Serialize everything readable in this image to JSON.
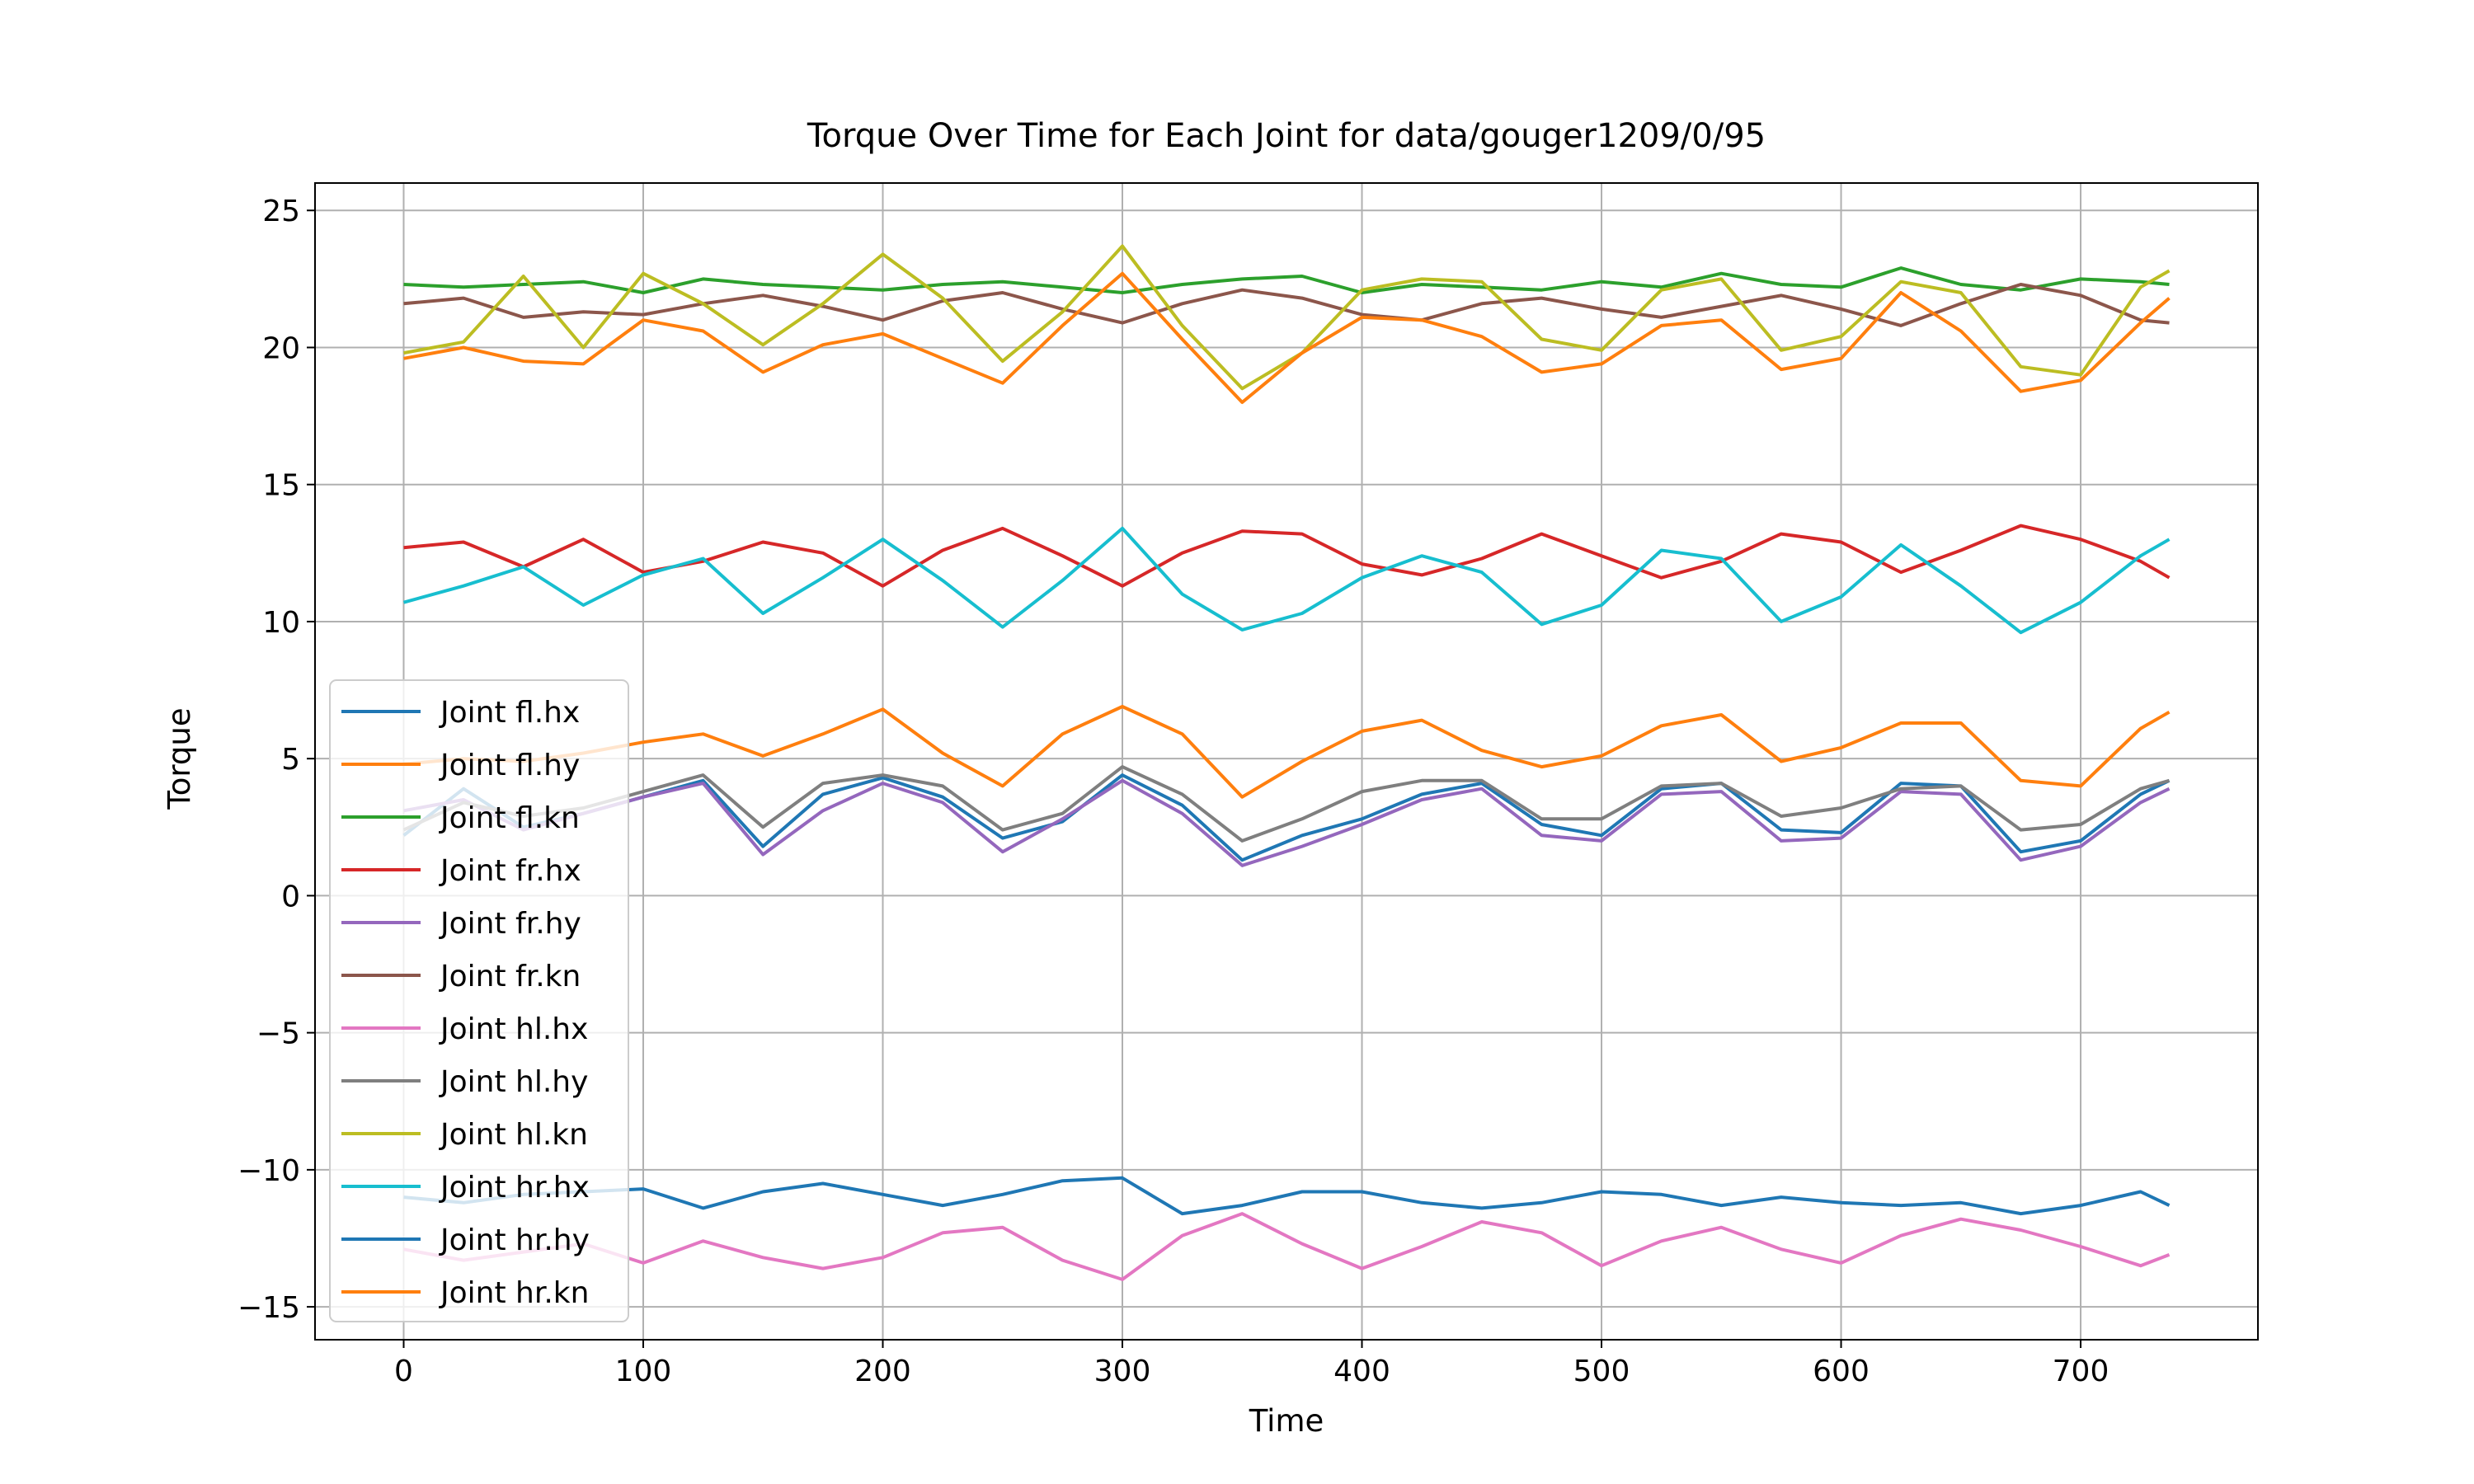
{
  "chart_data": {
    "type": "line",
    "title": "Torque Over Time for Each Joint for data/gouger1209/0/95",
    "xlabel": "Time",
    "ylabel": "Torque",
    "xlim": [
      -37,
      774
    ],
    "ylim": [
      -16.2,
      26.0
    ],
    "xticks": [
      0,
      100,
      200,
      300,
      400,
      500,
      600,
      700
    ],
    "yticks": [
      -15,
      -10,
      -5,
      0,
      5,
      10,
      15,
      20,
      25
    ],
    "grid": true,
    "legend_position": "lower-left",
    "x": [
      0,
      25,
      50,
      75,
      100,
      125,
      150,
      175,
      200,
      225,
      250,
      275,
      300,
      325,
      350,
      375,
      400,
      425,
      450,
      475,
      500,
      525,
      550,
      575,
      600,
      625,
      650,
      675,
      700,
      725,
      737
    ],
    "series": [
      {
        "name": "Joint fl.hx",
        "color": "#1f77b4",
        "values": [
          2.2,
          3.9,
          2.5,
          3.0,
          3.6,
          4.2,
          1.8,
          3.7,
          4.3,
          3.6,
          2.1,
          2.7,
          4.4,
          3.3,
          1.3,
          2.2,
          2.8,
          3.7,
          4.1,
          2.6,
          2.2,
          3.9,
          4.1,
          2.4,
          2.3,
          4.1,
          4.0,
          1.6,
          2.0,
          3.7,
          4.2
        ]
      },
      {
        "name": "Joint fl.hy",
        "color": "#ff7f0e",
        "values": [
          4.8,
          5.0,
          4.9,
          5.2,
          5.6,
          5.9,
          5.1,
          5.9,
          6.8,
          5.2,
          4.0,
          5.9,
          6.9,
          5.9,
          3.6,
          4.9,
          6.0,
          6.4,
          5.3,
          4.7,
          5.1,
          6.2,
          6.6,
          4.9,
          5.4,
          6.3,
          6.3,
          4.2,
          4.0,
          6.1,
          6.7
        ]
      },
      {
        "name": "Joint fl.kn",
        "color": "#2ca02c",
        "values": [
          22.3,
          22.2,
          22.3,
          22.4,
          22.0,
          22.5,
          22.3,
          22.2,
          22.1,
          22.3,
          22.4,
          22.2,
          22.0,
          22.3,
          22.5,
          22.6,
          22.0,
          22.3,
          22.2,
          22.1,
          22.4,
          22.2,
          22.7,
          22.3,
          22.2,
          22.9,
          22.3,
          22.1,
          22.5,
          22.4,
          22.3
        ]
      },
      {
        "name": "Joint fr.hx",
        "color": "#d62728",
        "values": [
          12.7,
          12.9,
          12.0,
          13.0,
          11.8,
          12.2,
          12.9,
          12.5,
          11.3,
          12.6,
          13.4,
          12.4,
          11.3,
          12.5,
          13.3,
          13.2,
          12.1,
          11.7,
          12.3,
          13.2,
          12.4,
          11.6,
          12.2,
          13.2,
          12.9,
          11.8,
          12.6,
          13.5,
          13.0,
          12.2,
          11.6
        ]
      },
      {
        "name": "Joint fr.hy",
        "color": "#9467bd",
        "values": [
          3.1,
          3.5,
          2.4,
          3.0,
          3.6,
          4.1,
          1.5,
          3.1,
          4.1,
          3.4,
          1.6,
          2.8,
          4.2,
          3.0,
          1.1,
          1.8,
          2.6,
          3.5,
          3.9,
          2.2,
          2.0,
          3.7,
          3.8,
          2.0,
          2.1,
          3.8,
          3.7,
          1.3,
          1.8,
          3.4,
          3.9
        ]
      },
      {
        "name": "Joint fr.kn",
        "color": "#8c564b",
        "values": [
          21.6,
          21.8,
          21.1,
          21.3,
          21.2,
          21.6,
          21.9,
          21.5,
          21.0,
          21.7,
          22.0,
          21.4,
          20.9,
          21.6,
          22.1,
          21.8,
          21.2,
          21.0,
          21.6,
          21.8,
          21.4,
          21.1,
          21.5,
          21.9,
          21.4,
          20.8,
          21.6,
          22.3,
          21.9,
          21.0,
          20.9
        ]
      },
      {
        "name": "Joint hl.hx",
        "color": "#e377c2",
        "values": [
          -12.9,
          -13.3,
          -13.0,
          -12.7,
          -13.4,
          -12.6,
          -13.2,
          -13.6,
          -13.2,
          -12.3,
          -12.1,
          -13.3,
          -14.0,
          -12.4,
          -11.6,
          -12.7,
          -13.6,
          -12.8,
          -11.9,
          -12.3,
          -13.5,
          -12.6,
          -12.1,
          -12.9,
          -13.4,
          -12.4,
          -11.8,
          -12.2,
          -12.8,
          -13.5,
          -13.1
        ]
      },
      {
        "name": "Joint hl.hy",
        "color": "#7f7f7f",
        "values": [
          2.4,
          3.4,
          2.9,
          3.2,
          3.8,
          4.4,
          2.5,
          4.1,
          4.4,
          4.0,
          2.4,
          3.0,
          4.7,
          3.7,
          2.0,
          2.8,
          3.8,
          4.2,
          4.2,
          2.8,
          2.8,
          4.0,
          4.1,
          2.9,
          3.2,
          3.9,
          4.0,
          2.4,
          2.6,
          3.9,
          4.2
        ]
      },
      {
        "name": "Joint hl.kn",
        "color": "#bcbd22",
        "values": [
          19.8,
          20.2,
          22.6,
          20.0,
          22.7,
          21.6,
          20.1,
          21.6,
          23.4,
          21.8,
          19.5,
          21.3,
          23.7,
          20.8,
          18.5,
          19.8,
          22.1,
          22.5,
          22.4,
          20.3,
          19.9,
          22.1,
          22.5,
          19.9,
          20.4,
          22.4,
          22.0,
          19.3,
          19.0,
          22.2,
          22.8
        ]
      },
      {
        "name": "Joint hr.hx",
        "color": "#17becf",
        "values": [
          10.7,
          11.3,
          12.0,
          10.6,
          11.7,
          12.3,
          10.3,
          11.6,
          13.0,
          11.5,
          9.8,
          11.5,
          13.4,
          11.0,
          9.7,
          10.3,
          11.6,
          12.4,
          11.8,
          9.9,
          10.6,
          12.6,
          12.3,
          10.0,
          10.9,
          12.8,
          11.3,
          9.6,
          10.7,
          12.4,
          13.0
        ]
      },
      {
        "name": "Joint hr.hy",
        "color": "#1f77b4",
        "values": [
          -11.0,
          -11.2,
          -10.9,
          -10.8,
          -10.7,
          -11.4,
          -10.8,
          -10.5,
          -10.9,
          -11.3,
          -10.9,
          -10.4,
          -10.3,
          -11.6,
          -11.3,
          -10.8,
          -10.8,
          -11.2,
          -11.4,
          -11.2,
          -10.8,
          -10.9,
          -11.3,
          -11.0,
          -11.2,
          -11.3,
          -11.2,
          -11.6,
          -11.3,
          -10.8,
          -11.3
        ]
      },
      {
        "name": "Joint hr.kn",
        "color": "#ff7f0e",
        "values": [
          19.6,
          20.0,
          19.5,
          19.4,
          21.0,
          20.6,
          19.1,
          20.1,
          20.5,
          19.6,
          18.7,
          20.8,
          22.7,
          20.3,
          18.0,
          19.8,
          21.1,
          21.0,
          20.4,
          19.1,
          19.4,
          20.8,
          21.0,
          19.2,
          19.6,
          22.0,
          20.6,
          18.4,
          18.8,
          20.9,
          21.8
        ]
      }
    ]
  }
}
